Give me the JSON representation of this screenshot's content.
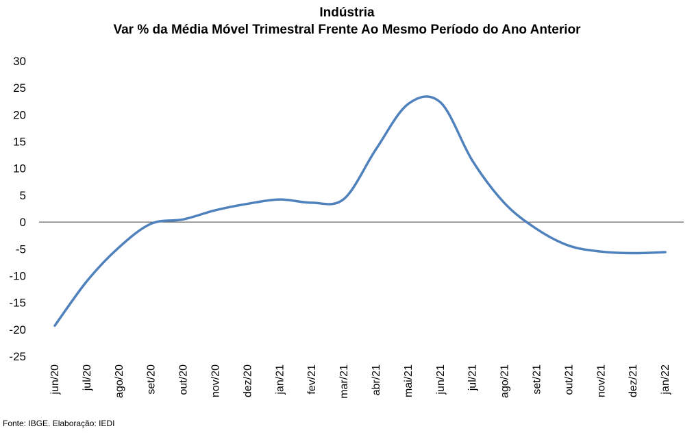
{
  "chart_data": {
    "type": "line",
    "title": "Indústria",
    "subtitle": "Var % da Média Móvel Trimestral Frente Ao Mesmo Período do Ano Anterior",
    "xlabel": "",
    "ylabel": "",
    "categories": [
      "jun/20",
      "jul/20",
      "ago/20",
      "set/20",
      "out/20",
      "nov/20",
      "dez/20",
      "jan/21",
      "fev/21",
      "mar/21",
      "abr/21",
      "mai/21",
      "jun/21",
      "jul/21",
      "ago/21",
      "set/21",
      "out/21",
      "nov/21",
      "dez/21",
      "jan/22"
    ],
    "series": [
      {
        "values": [
          -19.3,
          -11.0,
          -4.7,
          -0.3,
          0.5,
          2.2,
          3.4,
          4.2,
          3.6,
          4.3,
          13.6,
          22.0,
          22.3,
          11.4,
          3.5,
          -1.3,
          -4.4,
          -5.5,
          -5.8,
          -5.6
        ],
        "color": "#4F81BD"
      }
    ],
    "ylim": [
      -25,
      30
    ],
    "yticks": [
      30,
      25,
      20,
      15,
      10,
      5,
      0,
      -5,
      -10,
      -15,
      -20,
      -25
    ],
    "grid": false,
    "legend": "none"
  },
  "source": "Fonte: IBGE. Elaboração: IEDI"
}
